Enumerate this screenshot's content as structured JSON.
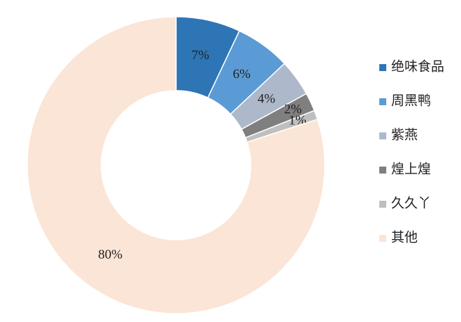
{
  "chart_data": {
    "type": "donut",
    "categories": [
      "绝味食品",
      "周黑鸭",
      "紫燕",
      "煌上煌",
      "久久丫",
      "其他"
    ],
    "values": [
      7,
      6,
      4,
      2,
      1,
      80
    ],
    "value_labels": [
      "7%",
      "6%",
      "4%",
      "2%",
      "1%",
      "80%"
    ],
    "colors": [
      "#2e75b6",
      "#5b9bd5",
      "#adb9ca",
      "#7f7f7f",
      "#bfbfbf",
      "#fbe5d6"
    ],
    "legend": "right"
  }
}
